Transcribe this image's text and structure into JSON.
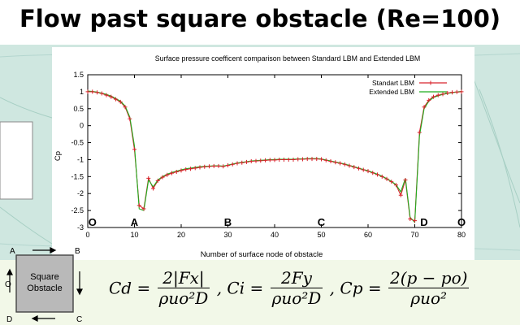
{
  "slide": {
    "title": "Flow past square obstacle (Re=100)"
  },
  "colors": {
    "series1": "#d8242c",
    "series2": "#1fae1f",
    "background_flow": "#cfe7e0"
  },
  "chart_data": {
    "type": "line",
    "title": "Surface pressure coefficent comparison between Standard LBM and Extended LBM",
    "xlabel": "Number of surface node of obstacle",
    "ylabel": "Cp",
    "xlim": [
      0,
      80
    ],
    "ylim": [
      -3,
      1.5
    ],
    "xticks": [
      0,
      10,
      20,
      30,
      40,
      50,
      60,
      70,
      80
    ],
    "yticks": [
      -3,
      -2.5,
      -2,
      -1.5,
      -1,
      -0.5,
      0,
      0.5,
      1,
      1.5
    ],
    "grid": false,
    "legend_position": "top-right",
    "point_labels": [
      {
        "label": "O",
        "x": 1
      },
      {
        "label": "A",
        "x": 10
      },
      {
        "label": "B",
        "x": 30
      },
      {
        "label": "C",
        "x": 50
      },
      {
        "label": "D",
        "x": 72
      },
      {
        "label": "O",
        "x": 80
      }
    ],
    "series": [
      {
        "name": "Standart LBM",
        "marker": "plus",
        "x": [
          0,
          1,
          2,
          3,
          4,
          5,
          6,
          7,
          8,
          9,
          10,
          11,
          12,
          13,
          14,
          15,
          16,
          17,
          18,
          19,
          20,
          21,
          22,
          23,
          24,
          25,
          26,
          27,
          28,
          29,
          30,
          31,
          32,
          33,
          34,
          35,
          36,
          37,
          38,
          39,
          40,
          41,
          42,
          43,
          44,
          45,
          46,
          47,
          48,
          49,
          50,
          51,
          52,
          53,
          54,
          55,
          56,
          57,
          58,
          59,
          60,
          61,
          62,
          63,
          64,
          65,
          66,
          67,
          68,
          69,
          70,
          71,
          72,
          73,
          74,
          75,
          76,
          77,
          78,
          79,
          80
        ],
        "y": [
          1.0,
          1.0,
          0.98,
          0.95,
          0.9,
          0.85,
          0.78,
          0.7,
          0.55,
          0.2,
          -0.7,
          -2.35,
          -2.45,
          -1.55,
          -1.85,
          -1.62,
          -1.52,
          -1.45,
          -1.4,
          -1.36,
          -1.32,
          -1.29,
          -1.27,
          -1.25,
          -1.23,
          -1.21,
          -1.2,
          -1.19,
          -1.19,
          -1.2,
          -1.17,
          -1.14,
          -1.11,
          -1.09,
          -1.07,
          -1.05,
          -1.04,
          -1.03,
          -1.02,
          -1.01,
          -1.01,
          -1.0,
          -1.0,
          -1.0,
          -1.0,
          -0.99,
          -0.99,
          -0.98,
          -0.98,
          -0.98,
          -0.99,
          -1.02,
          -1.05,
          -1.08,
          -1.11,
          -1.14,
          -1.18,
          -1.22,
          -1.26,
          -1.3,
          -1.34,
          -1.39,
          -1.44,
          -1.5,
          -1.57,
          -1.65,
          -1.75,
          -2.05,
          -1.6,
          -2.75,
          -2.8,
          -0.2,
          0.55,
          0.75,
          0.85,
          0.9,
          0.93,
          0.96,
          0.98,
          0.99,
          1.0
        ]
      },
      {
        "name": "Extended LBM",
        "marker": "none",
        "x": [
          0,
          1,
          2,
          3,
          4,
          5,
          6,
          7,
          8,
          9,
          10,
          11,
          12,
          13,
          14,
          15,
          16,
          17,
          18,
          19,
          20,
          21,
          22,
          23,
          24,
          25,
          26,
          27,
          28,
          29,
          30,
          31,
          32,
          33,
          34,
          35,
          36,
          37,
          38,
          39,
          40,
          41,
          42,
          43,
          44,
          45,
          46,
          47,
          48,
          49,
          50,
          51,
          52,
          53,
          54,
          55,
          56,
          57,
          58,
          59,
          60,
          61,
          62,
          63,
          64,
          65,
          66,
          67,
          68,
          69,
          70,
          71,
          72,
          73,
          74,
          75,
          76,
          77,
          78,
          79,
          80
        ],
        "y": [
          1.02,
          1.01,
          0.99,
          0.96,
          0.92,
          0.87,
          0.8,
          0.72,
          0.58,
          0.25,
          -0.6,
          -2.45,
          -2.5,
          -1.6,
          -1.8,
          -1.6,
          -1.5,
          -1.43,
          -1.38,
          -1.34,
          -1.3,
          -1.27,
          -1.25,
          -1.23,
          -1.21,
          -1.2,
          -1.19,
          -1.18,
          -1.18,
          -1.19,
          -1.16,
          -1.13,
          -1.1,
          -1.08,
          -1.06,
          -1.04,
          -1.03,
          -1.02,
          -1.01,
          -1.0,
          -1.0,
          -0.99,
          -0.99,
          -0.99,
          -0.99,
          -0.98,
          -0.98,
          -0.97,
          -0.97,
          -0.97,
          -0.98,
          -1.01,
          -1.04,
          -1.07,
          -1.1,
          -1.13,
          -1.17,
          -1.21,
          -1.25,
          -1.29,
          -1.33,
          -1.38,
          -1.43,
          -1.49,
          -1.56,
          -1.64,
          -1.74,
          -1.95,
          -1.55,
          -2.7,
          -2.85,
          -0.3,
          0.5,
          0.72,
          0.83,
          0.88,
          0.92,
          0.95,
          0.97,
          0.99,
          1.01
        ]
      }
    ]
  },
  "schematic": {
    "box_label_line1": "Square",
    "box_label_line2": "Obstacle",
    "corner_labels": {
      "a": "A",
      "b": "B",
      "c": "C",
      "d": "D",
      "o": "O"
    }
  },
  "formulas": {
    "cd_lhs": "Cd =",
    "cd_num": "2|Fx|",
    "cd_den": "ρuo²D",
    "ci_lhs": ", Ci =",
    "ci_num": "2Fy",
    "ci_den": "ρuo²D",
    "cp_lhs": ", Cp =",
    "cp_num": "2(p − po)",
    "cp_den": "ρuo²"
  }
}
